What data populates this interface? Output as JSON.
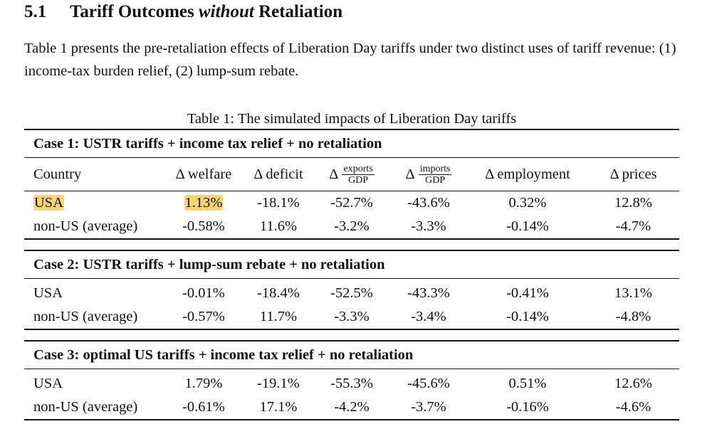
{
  "section": {
    "number": "5.1",
    "title_before": "Tariff Outcomes",
    "title_italic": "without",
    "title_after": "Retaliation"
  },
  "intro_text": "Table 1 presents the pre-retaliation effects of Liberation Day tariffs under two distinct uses of tariff revenue: (1) income-tax burden relief, (2) lump-sum rebate.",
  "table": {
    "caption": "Table 1: The simulated impacts of Liberation Day tariffs",
    "columns": {
      "country": "Country",
      "welfare": "Δ welfare",
      "deficit": "Δ deficit",
      "exports_delta": "Δ",
      "exports_num": "exports",
      "exports_den": "GDP",
      "imports_delta": "Δ",
      "imports_num": "imports",
      "imports_den": "GDP",
      "employment": "Δ employment",
      "prices": "Δ prices"
    },
    "cases": [
      {
        "title": "Case 1: USTR tariffs + income tax relief + no retaliation",
        "rows": [
          {
            "country": "USA",
            "welfare": "1.13%",
            "deficit": "-18.1%",
            "exports": "-52.7%",
            "imports": "-43.6%",
            "employment": "0.32%",
            "prices": "12.8%"
          },
          {
            "country": "non-US (average)",
            "welfare": "-0.58%",
            "deficit": "11.6%",
            "exports": "-3.2%",
            "imports": "-3.3%",
            "employment": "-0.14%",
            "prices": "-4.7%"
          }
        ]
      },
      {
        "title": "Case 2: USTR tariffs + lump-sum rebate + no retaliation",
        "rows": [
          {
            "country": "USA",
            "welfare": "-0.01%",
            "deficit": "-18.4%",
            "exports": "-52.5%",
            "imports": "-43.3%",
            "employment": "-0.41%",
            "prices": "13.1%"
          },
          {
            "country": "non-US (average)",
            "welfare": "-0.57%",
            "deficit": "11.7%",
            "exports": "-3.3%",
            "imports": "-3.4%",
            "employment": "-0.14%",
            "prices": "-4.8%"
          }
        ]
      },
      {
        "title": "Case 3: optimal US tariffs + income tax relief + no retaliation",
        "rows": [
          {
            "country": "USA",
            "welfare": "1.79%",
            "deficit": "-19.1%",
            "exports": "-55.3%",
            "imports": "-45.6%",
            "employment": "0.51%",
            "prices": "12.6%"
          },
          {
            "country": "non-US (average)",
            "welfare": "-0.61%",
            "deficit": "17.1%",
            "exports": "-4.2%",
            "imports": "-3.7%",
            "employment": "-0.16%",
            "prices": "-4.6%"
          }
        ]
      }
    ]
  },
  "highlight_color": "#f9d474"
}
